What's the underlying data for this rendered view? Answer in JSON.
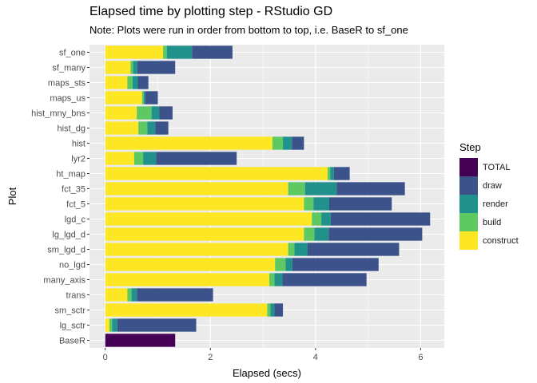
{
  "chart_data": {
    "type": "bar",
    "orientation": "horizontal",
    "stacked": true,
    "title": "Elapsed time by plotting step - RStudio GD",
    "subtitle": "Note: Plots were run in order from bottom to top, i.e. BaseR to sf_one",
    "xlabel": "Elapsed (secs)",
    "ylabel": "Plot",
    "xlim": [
      -0.3,
      6.45
    ],
    "xticks": [
      0,
      2,
      4,
      6
    ],
    "grid": true,
    "legend": {
      "title": "Step",
      "position": "right",
      "entries": [
        "TOTAL",
        "draw",
        "render",
        "build",
        "construct"
      ]
    },
    "categories": [
      "BaseR",
      "lg_sctr",
      "sm_sctr",
      "trans",
      "many_axis",
      "no_lgd",
      "sm_lgd_d",
      "lg_lgd_d",
      "lgd_c",
      "fct_5",
      "fct_35",
      "ht_map",
      "lyr2",
      "hist",
      "hist_dg",
      "hist_mny_bns",
      "maps_us",
      "maps_sts",
      "sf_many",
      "sf_one"
    ],
    "stack_order": [
      "construct",
      "build",
      "render",
      "draw",
      "TOTAL"
    ],
    "series": [
      {
        "name": "construct",
        "color": "#FDE725",
        "values": [
          0,
          0.08,
          3.08,
          0.42,
          3.12,
          3.23,
          3.48,
          3.78,
          3.93,
          3.78,
          3.48,
          4.23,
          0.55,
          3.18,
          0.63,
          0.6,
          0.7,
          0.42,
          0.48,
          1.1
        ]
      },
      {
        "name": "build",
        "color": "#5EC962",
        "values": [
          0,
          0.05,
          0.06,
          0.08,
          0.1,
          0.2,
          0.12,
          0.2,
          0.18,
          0.18,
          0.32,
          0.05,
          0.17,
          0.2,
          0.17,
          0.28,
          0.03,
          0.1,
          0.05,
          0.07
        ]
      },
      {
        "name": "render",
        "color": "#21918C",
        "values": [
          0,
          0.1,
          0.08,
          0.1,
          0.15,
          0.13,
          0.25,
          0.27,
          0.18,
          0.3,
          0.6,
          0.07,
          0.25,
          0.17,
          0.15,
          0.15,
          0.03,
          0.1,
          0.08,
          0.48
        ]
      },
      {
        "name": "draw",
        "color": "#3B528B",
        "values": [
          0,
          1.5,
          0.16,
          1.45,
          1.6,
          1.64,
          1.74,
          1.78,
          1.89,
          1.19,
          1.3,
          0.3,
          1.53,
          0.23,
          0.25,
          0.25,
          0.24,
          0.2,
          0.72,
          0.77
        ]
      },
      {
        "name": "TOTAL",
        "color": "#440154",
        "values": [
          1.33,
          0,
          0,
          0,
          0,
          0,
          0,
          0,
          0,
          0,
          0,
          0,
          0,
          0,
          0,
          0,
          0,
          0,
          0,
          0
        ]
      }
    ]
  }
}
